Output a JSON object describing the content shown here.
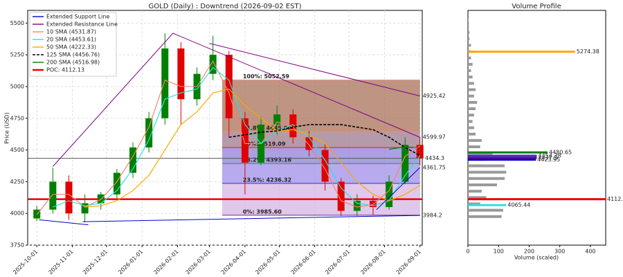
{
  "chart_data": [
    {
      "type": "candlestick",
      "title": "GOLD (Daily) : Downtrend (2026-09-02 EST)",
      "y_label": "Price (USD)",
      "xlim": [
        "2025-09-23",
        "2026-09-03"
      ],
      "xticks": [
        "2025-10-01",
        "2025-11-01",
        "2025-12-01",
        "2026-01-01",
        "2026-02-01",
        "2026-03-01",
        "2026-04-01",
        "2026-05-01",
        "2026-06-01",
        "2026-07-01",
        "2026-08-01",
        "2026-09-01"
      ],
      "ylim": [
        3750,
        5600
      ],
      "yticks": [
        3750,
        4000,
        4250,
        4500,
        4750,
        5000,
        5250,
        5500
      ],
      "grid": true,
      "up_color": "#008000",
      "down_color": "#e00000",
      "x": [
        "2025-10-01",
        "2025-10-15",
        "2025-10-29",
        "2025-11-12",
        "2025-11-26",
        "2025-12-10",
        "2025-12-24",
        "2026-01-07",
        "2026-01-21",
        "2026-02-04",
        "2026-02-18",
        "2026-03-04",
        "2026-03-18",
        "2026-04-01",
        "2026-04-15",
        "2026-04-29",
        "2026-05-13",
        "2026-05-27",
        "2026-06-10",
        "2026-06-24",
        "2026-07-08",
        "2026-07-22",
        "2026-08-05",
        "2026-08-19",
        "2026-09-01"
      ],
      "open": [
        3960,
        4030,
        4250,
        4000,
        4080,
        4150,
        4320,
        4520,
        4750,
        5300,
        4900,
        5100,
        5250,
        4750,
        4400,
        4700,
        4780,
        4600,
        4500,
        4250,
        4020,
        4100,
        4050,
        4250,
        4540
      ],
      "high": [
        4060,
        4360,
        4300,
        4150,
        4170,
        4350,
        4560,
        4800,
        5420,
        5350,
        5150,
        5400,
        5280,
        4800,
        4760,
        4850,
        4820,
        4650,
        4550,
        4280,
        4150,
        4140,
        4300,
        4600,
        4600
      ],
      "low": [
        3940,
        4000,
        3950,
        3930,
        4030,
        4120,
        4280,
        4480,
        4700,
        4700,
        4850,
        5050,
        4600,
        4150,
        4380,
        4620,
        4550,
        4450,
        4180,
        3980,
        3980,
        3990,
        4030,
        4230,
        4380
      ],
      "close": [
        4030,
        4250,
        4000,
        4080,
        4150,
        4320,
        4520,
        4750,
        5300,
        4900,
        5100,
        5250,
        4750,
        4400,
        4700,
        4780,
        4600,
        4500,
        4250,
        4020,
        4100,
        4050,
        4250,
        4540,
        4434.3
      ],
      "series": [
        {
          "name": "10 SMA (4531.87)",
          "color": "#f4846c",
          "values": [
            3990,
            4150,
            4150,
            4050,
            4110,
            4250,
            4450,
            4680,
            5050,
            5000,
            5000,
            5200,
            4950,
            4550,
            4550,
            4720,
            4680,
            4540,
            4350,
            4100,
            4050,
            4070,
            4180,
            4450,
            4531.87
          ]
        },
        {
          "name": "20 SMA (4453.61)",
          "color": "#33dddd",
          "values": [
            null,
            4050,
            4100,
            4060,
            4080,
            4180,
            4350,
            4580,
            4900,
            4950,
            4980,
            5150,
            5050,
            4700,
            4550,
            4650,
            4700,
            4600,
            4420,
            4200,
            4080,
            4060,
            4100,
            4300,
            4453.61
          ]
        },
        {
          "name": "50 SMA (4222.33)",
          "color": "#ffa500",
          "values": [
            null,
            null,
            null,
            4050,
            4060,
            4100,
            4180,
            4300,
            4500,
            4700,
            4800,
            4950,
            4980,
            4850,
            4750,
            4650,
            4660,
            4620,
            4550,
            4400,
            4250,
            4150,
            4100,
            4150,
            4222.33
          ]
        },
        {
          "name": "125 SMA (4456.76)",
          "color": "#000000",
          "dash": true,
          "values": [
            null,
            null,
            null,
            null,
            null,
            null,
            null,
            null,
            null,
            null,
            null,
            null,
            4600,
            4620,
            4640,
            4650,
            4680,
            4700,
            4700,
            4700,
            4680,
            4660,
            4600,
            4520,
            4456.76
          ]
        },
        {
          "name": "200 SMA (4516.98)",
          "color": "#008000",
          "values": [
            null,
            null,
            null,
            null,
            null,
            null,
            null,
            null,
            null,
            null,
            null,
            null,
            null,
            null,
            null,
            null,
            null,
            null,
            null,
            null,
            null,
            null,
            4505,
            4525,
            4516.98
          ]
        }
      ],
      "trendlines": [
        {
          "name": "Extended Support Line",
          "color": "#0000cc",
          "x": [
            "2025-10-03",
            "2025-11-15"
          ],
          "values": [
            3950,
            3910
          ]
        },
        {
          "color": "#0000cc",
          "x": [
            "2025-11-10",
            "2026-09-01"
          ],
          "values": [
            3935,
            3984.2
          ],
          "end_label": true
        },
        {
          "color": "#0000cc",
          "x": [
            "2026-07-25",
            "2026-09-01"
          ],
          "values": [
            4030,
            4361.75
          ],
          "end_label": true
        },
        {
          "name": "Extended Resistance Line",
          "color": "#800080",
          "x": [
            "2025-10-15",
            "2026-01-28"
          ],
          "values": [
            4370,
            5420
          ]
        },
        {
          "color": "#800080",
          "x": [
            "2026-01-28",
            "2026-09-01"
          ],
          "values": [
            5420,
            4599.97
          ],
          "end_label": true
        },
        {
          "color": "#800080",
          "x": [
            "2026-03-01",
            "2026-09-01"
          ],
          "values": [
            5340,
            4925.42
          ],
          "end_label": true
        }
      ],
      "fib": {
        "x": [
          "2026-03-12",
          "2026-09-01"
        ],
        "levels": [
          {
            "value": 5052.59,
            "label": "100%: 5052.59",
            "color": "#ff9999",
            "band": "#a8705a"
          },
          {
            "value": 4645.0,
            "label": "61.8%: 4645.00",
            "color": "#ff9900",
            "band": "#9c7a8c"
          },
          {
            "value": 4519.09,
            "label": "50%: 4519.09",
            "color": "#ee0000",
            "band": "#8d80d8"
          },
          {
            "value": 4393.16,
            "label": "38.2%: 4393.16",
            "color": "#008800",
            "band": "#9f8fe8"
          },
          {
            "value": 4236.32,
            "label": "23.5%: 4236.32",
            "color": "#0000ee",
            "band": "#d4b6e2"
          },
          {
            "value": 3985.6,
            "label": "0%: 3985.60",
            "color": "#800080"
          }
        ]
      },
      "hline": {
        "value": 4434.3,
        "color": "#555555"
      },
      "poc": {
        "name": "POC: 4112.13",
        "value": 4112.13,
        "color": "#ee0000"
      }
    },
    {
      "type": "barh",
      "title": "Volume Profile",
      "x_label": "Volume (scaled)",
      "xlim": [
        0,
        450
      ],
      "xticks": [
        0,
        100,
        200,
        300,
        400
      ],
      "ylim": [
        3750,
        5600
      ],
      "color": "#999999",
      "y": [
        3975,
        4025,
        4075,
        4125,
        4175,
        4225,
        4275,
        4325,
        4375,
        4425,
        4475,
        4525,
        4575,
        4625,
        4675,
        4725,
        4775,
        4825,
        4875,
        4925,
        4975,
        5025,
        5075,
        5125,
        5175,
        5225,
        5275,
        5325,
        5375,
        5425,
        5475,
        5525
      ],
      "values": [
        110,
        115,
        40,
        60,
        45,
        95,
        120,
        125,
        120,
        60,
        80,
        40,
        45,
        25,
        20,
        15,
        20,
        25,
        30,
        20,
        25,
        20,
        15,
        10,
        15,
        10,
        8,
        10,
        5,
        5,
        3,
        2
      ],
      "highlights": [
        {
          "y": 5274.38,
          "value": 350,
          "color": "#ffa500"
        },
        {
          "y": 4480.65,
          "value": 260,
          "color": "#008000"
        },
        {
          "y": 4454.38,
          "value": 225,
          "color": "#3333cc"
        },
        {
          "y": 4437.5,
          "value": 225,
          "color": "#800080"
        },
        {
          "y": 4423.95,
          "value": 222,
          "color": "#0000cc"
        },
        {
          "y": 4112.13,
          "value": 450,
          "color": "#ee0000"
        },
        {
          "y": 4065.44,
          "value": 125,
          "color": "#33dddd"
        }
      ]
    }
  ]
}
